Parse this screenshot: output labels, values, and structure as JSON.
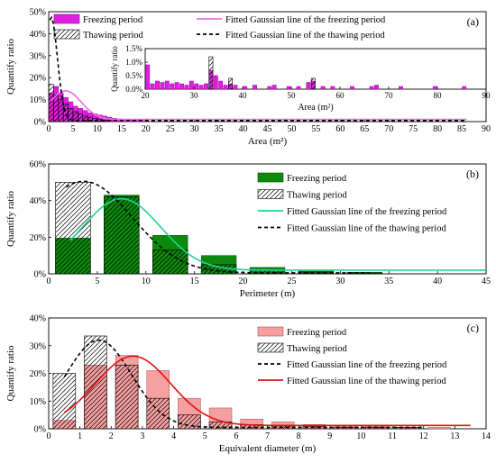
{
  "chart_data": [
    {
      "type": "bar",
      "panel_label": "(a)",
      "xlabel": "Area (m²)",
      "ylabel": "Quantify ratio",
      "xlim": [
        0,
        90
      ],
      "ylim": [
        0,
        50
      ],
      "x_ticks": [
        "0",
        "5",
        "10",
        "15",
        "20",
        "25",
        "30",
        "35",
        "40",
        "45",
        "50",
        "55",
        "60",
        "65",
        "70",
        "75",
        "80",
        "85",
        "90"
      ],
      "y_ticks": [
        "0%",
        "10%",
        "20%",
        "30%",
        "40%",
        "50%"
      ],
      "legend": [
        "Freezing period",
        "Fitted Gaussian line of the freezing period",
        "Thawing period",
        "Fitted Gaussian line of the thawing period"
      ],
      "colors": {
        "freezing": "#e020e0",
        "freezing_edge": "#9a009a",
        "fit_freezing": "#f06cf0",
        "thawing": "#000000",
        "fit_thawing": "#000000"
      },
      "bar_width": 1,
      "series": [
        {
          "name": "Freezing period",
          "style": "fill",
          "x": [
            0.5,
            1.5,
            2.5,
            3.5,
            4.5,
            5.5,
            6.5,
            7.5,
            8.5,
            9.5,
            10.5,
            11.5,
            12.5,
            13.5,
            14.5,
            15.5,
            16.5,
            17.5,
            18.5,
            19.5
          ],
          "values": [
            13,
            16,
            13,
            11,
            9,
            7,
            6,
            5,
            4,
            3.5,
            3,
            2.5,
            2,
            1.5,
            1.2,
            1,
            0.8,
            0.6,
            0.5,
            0.4
          ]
        },
        {
          "name": "Thawing period",
          "style": "hatch",
          "x": [
            0.5,
            1.5,
            2.5,
            3.5,
            4.5,
            5.5,
            6.5,
            7.5,
            8.5,
            9.5,
            10.5,
            11.5
          ],
          "values": [
            17,
            12,
            10,
            8,
            6,
            4.5,
            3.5,
            2.5,
            2,
            1.5,
            1,
            0.6
          ]
        }
      ],
      "fit_curves": [
        {
          "name": "Fitted Gaussian line of the freezing period",
          "style": "solid",
          "peak_x": 3.5,
          "amplitude": 13,
          "sigma": 3.2,
          "baseline": 1.0,
          "x_range": [
            0.5,
            86
          ]
        },
        {
          "name": "Fitted Gaussian line of the thawing period",
          "style": "dashed",
          "peak_x": 0.5,
          "amplitude": 47,
          "sigma": 1.3,
          "baseline": 0.5,
          "x_range": [
            0.2,
            86
          ]
        }
      ],
      "inset": {
        "xlim": [
          20,
          90
        ],
        "ylim": [
          0,
          1.5
        ],
        "xlabel": "Area (m²)",
        "ylabel": "Quantify ratio",
        "x_ticks": [
          "20",
          "30",
          "40",
          "50",
          "60",
          "70",
          "80",
          "90"
        ],
        "y_ticks": [
          "0.0%",
          "0.5%",
          "1.0%",
          "1.5%"
        ],
        "bar_width": 0.8,
        "series": [
          {
            "name": "Freezing period",
            "style": "fill",
            "x": [
              20.5,
              21.5,
              22.5,
              23.5,
              24.5,
              25.5,
              26.5,
              27.5,
              28.5,
              29.5,
              30.5,
              31.5,
              32.5,
              33.5,
              34.5,
              35.5,
              36.5,
              37.5,
              38.5,
              40.5,
              42.5,
              45.5,
              46.5,
              49.5,
              51.5,
              53.5,
              54.5,
              56.5,
              58.5,
              62.5,
              66.5,
              67.5,
              72.5,
              79.5,
              85.5
            ],
            "values": [
              0.9,
              0.2,
              0.3,
              0.25,
              0.3,
              0.2,
              0.25,
              0.2,
              0.15,
              0.3,
              0.2,
              0.15,
              0.2,
              0.7,
              0.5,
              0.3,
              0.15,
              0.2,
              0.15,
              0.1,
              0.15,
              0.1,
              0.15,
              0.1,
              0.1,
              0.25,
              0.3,
              0.1,
              0.1,
              0.1,
              0.1,
              0.15,
              0.1,
              0.1,
              0.1
            ]
          },
          {
            "name": "Thawing period",
            "style": "hatch",
            "x": [
              33.5,
              37.5,
              54.5
            ],
            "values": [
              1.2,
              0.4,
              0.4
            ]
          }
        ]
      }
    },
    {
      "type": "bar",
      "panel_label": "(b)",
      "xlabel": "Perimeter (m)",
      "ylabel": "Quantify ratio",
      "xlim": [
        0,
        45
      ],
      "ylim": [
        0,
        60
      ],
      "x_ticks": [
        "0",
        "5",
        "10",
        "15",
        "20",
        "25",
        "30",
        "35",
        "40",
        "45"
      ],
      "y_ticks": [
        "0%",
        "20%",
        "40%",
        "60%"
      ],
      "legend": [
        "Freezing period",
        "Thawing period",
        "Fitted Gaussian line of the freezing period",
        "Fitted Gaussian line of the thawing period"
      ],
      "colors": {
        "freezing": "#0c8a0c",
        "freezing_edge": "#004d00",
        "fit_freezing": "#22d39a",
        "thawing": "#000000",
        "fit_thawing": "#000000"
      },
      "bar_width": 3.6,
      "series": [
        {
          "name": "Freezing period",
          "style": "fill",
          "x": [
            2.5,
            7.5,
            12.5,
            17.5,
            22.5,
            27.5,
            32.5
          ],
          "values": [
            19.5,
            43,
            21,
            10,
            3.5,
            1.5,
            0.8
          ]
        },
        {
          "name": "Thawing period",
          "style": "hatch",
          "x": [
            2.5,
            7.5,
            12.5,
            17.5,
            22.5,
            27.5,
            32.5
          ],
          "values": [
            50,
            42,
            13,
            5,
            2,
            1,
            0.5
          ]
        }
      ],
      "fit_curves": [
        {
          "name": "Fitted Gaussian line of the freezing period",
          "style": "solid",
          "peak_x": 7.5,
          "amplitude": 39,
          "sigma": 4.0,
          "baseline": 2,
          "x_range": [
            2.2,
            45
          ]
        },
        {
          "name": "Fitted Gaussian line of the thawing period",
          "style": "dashed",
          "peak_x": 3.6,
          "amplitude": 50,
          "sigma": 5.0,
          "baseline": 0.5,
          "x_range": [
            1.8,
            33
          ]
        }
      ]
    },
    {
      "type": "bar",
      "panel_label": "(c)",
      "xlabel": "Equivalent diameter (m)",
      "ylabel": "Quantify ratio",
      "xlim": [
        0,
        14
      ],
      "ylim": [
        0,
        40
      ],
      "x_ticks": [
        "0",
        "1",
        "2",
        "3",
        "4",
        "5",
        "6",
        "7",
        "8",
        "9",
        "10",
        "11",
        "12",
        "13",
        "14"
      ],
      "y_ticks": [
        "0%",
        "10%",
        "20%",
        "30%",
        "40%"
      ],
      "legend": [
        "Freezing period",
        "Thawing period",
        "Fitted Gaussian line of the freezing period",
        "Fitted Gaussian line of the thawing period"
      ],
      "colors": {
        "freezing": "#f5a0a0",
        "freezing_edge": "#b04a4a",
        "fit_freezing": "#000000",
        "thawing": "#000000",
        "fit_thawing": "#e01010"
      },
      "bar_width": 0.72,
      "series": [
        {
          "name": "Freezing period",
          "style": "fill",
          "x": [
            0.5,
            1.5,
            2.5,
            3.5,
            4.5,
            5.5,
            6.5,
            7.5,
            8.5,
            9.5,
            10.5,
            11.5,
            12.5
          ],
          "values": [
            3,
            23,
            26.5,
            21,
            11,
            7.5,
            3.5,
            2.5,
            1.5,
            1,
            1,
            0.5,
            0.5
          ]
        },
        {
          "name": "Thawing period",
          "style": "hatch",
          "x": [
            0.5,
            1.5,
            2.5,
            3.5,
            4.5,
            5.5,
            6.5,
            7.5,
            8.5,
            9.5,
            10.5,
            11.5
          ],
          "values": [
            20,
            33.5,
            23,
            11,
            5,
            2.5,
            1.5,
            1,
            0.8,
            0.5,
            0.5,
            0.5
          ]
        }
      ],
      "fit_curves": [
        {
          "name": "Fitted Gaussian line of the freezing period",
          "style": "dashed",
          "peak_x": 1.6,
          "amplitude": 31.5,
          "sigma": 1.05,
          "baseline": 0.5,
          "x_range": [
            0.5,
            12
          ]
        },
        {
          "name": "Fitted Gaussian line of the thawing period",
          "style": "solid",
          "peak_x": 2.7,
          "amplitude": 25,
          "sigma": 1.2,
          "baseline": 1.2,
          "x_range": [
            0.5,
            13.5
          ]
        }
      ]
    }
  ]
}
